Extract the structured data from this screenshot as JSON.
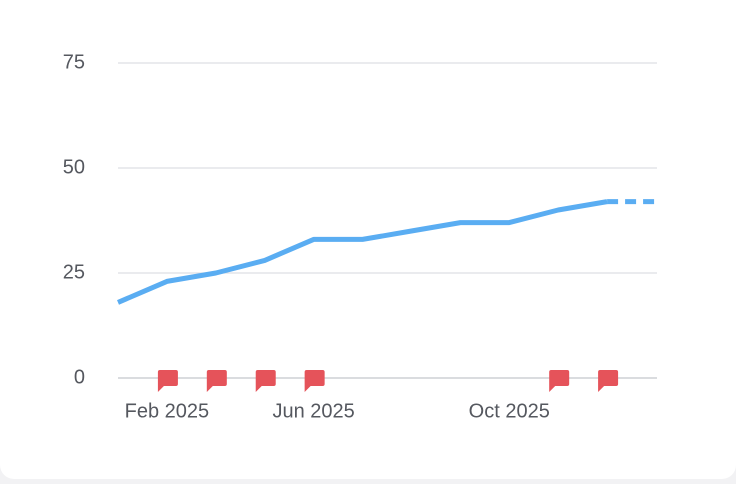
{
  "chart_data": {
    "type": "line",
    "categories": [
      null,
      "Feb 2025",
      null,
      null,
      "Jun 2025",
      null,
      null,
      null,
      "Oct 2025",
      null,
      null,
      null
    ],
    "series": [
      {
        "color": "#5aadf2",
        "values": [
          18,
          23,
          25,
          28,
          33,
          33,
          35,
          37,
          37,
          40,
          42,
          42
        ]
      }
    ],
    "dashed_from_index": 10,
    "flags": [
      1,
      2,
      3,
      4,
      9,
      10
    ],
    "flag_color": "#e5535a",
    "ylim": [
      0,
      75
    ],
    "yticks": [
      0,
      25,
      50,
      75
    ],
    "grid": true
  }
}
